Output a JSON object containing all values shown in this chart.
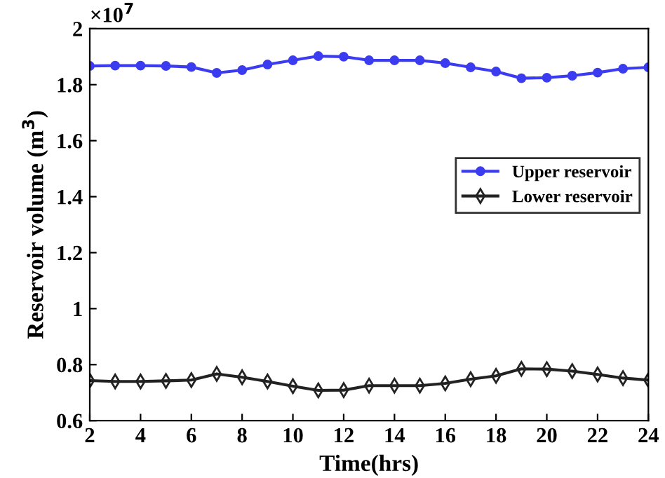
{
  "chart_data": {
    "type": "line",
    "xlabel": "Time(hrs)",
    "ylabel": "Reservoir volume (m$^{3}$)",
    "x": [
      2,
      3,
      4,
      5,
      6,
      7,
      8,
      9,
      10,
      11,
      12,
      13,
      14,
      15,
      16,
      17,
      18,
      19,
      20,
      21,
      22,
      23,
      24
    ],
    "series": [
      {
        "name": "Upper reservoir",
        "color": "#3b3bf0",
        "marker": "circle",
        "values": [
          1.867,
          1.868,
          1.868,
          1.867,
          1.863,
          1.842,
          1.852,
          1.872,
          1.887,
          1.902,
          1.9,
          1.887,
          1.887,
          1.887,
          1.877,
          1.862,
          1.847,
          1.823,
          1.825,
          1.832,
          1.843,
          1.857,
          1.862
        ]
      },
      {
        "name": "Lower reservoir",
        "color": "#222222",
        "marker": "diamond",
        "values": [
          0.743,
          0.74,
          0.74,
          0.742,
          0.745,
          0.767,
          0.755,
          0.74,
          0.723,
          0.708,
          0.709,
          0.725,
          0.725,
          0.725,
          0.733,
          0.748,
          0.76,
          0.785,
          0.784,
          0.777,
          0.765,
          0.752,
          0.745
        ]
      }
    ],
    "xlim": [
      2,
      24
    ],
    "xticks": [
      2,
      4,
      6,
      8,
      10,
      12,
      14,
      16,
      18,
      20,
      22,
      24
    ],
    "ylim": [
      0.6,
      2
    ],
    "yticks": [
      0.6,
      0.8,
      1,
      1.2,
      1.4,
      1.6,
      1.8,
      2
    ],
    "annotations": [
      "×10$^{7}$"
    ],
    "legend": "center right",
    "grid": false,
    "line_style": "solid"
  }
}
